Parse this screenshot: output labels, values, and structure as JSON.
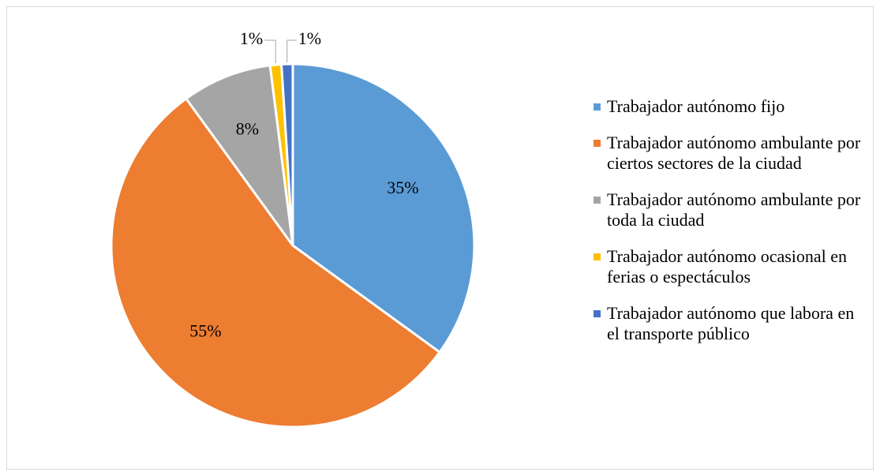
{
  "chart_data": {
    "type": "pie",
    "categories": [
      "Trabajador autónomo fijo",
      "Trabajador autónomo ambulante por ciertos sectores de la ciudad",
      "Trabajador autónomo ambulante por toda la ciudad",
      "Trabajador autónomo ocasional en ferias o espectáculos",
      "Trabajador autónomo que labora en el transporte público"
    ],
    "values": [
      35,
      55,
      8,
      1,
      1
    ],
    "value_labels": [
      "35%",
      "55%",
      "8%",
      "1%",
      "1%"
    ],
    "colors": [
      "#5b9bd5",
      "#ed7d31",
      "#a5a5a5",
      "#ffc000",
      "#4472c4"
    ],
    "legend": "right"
  }
}
